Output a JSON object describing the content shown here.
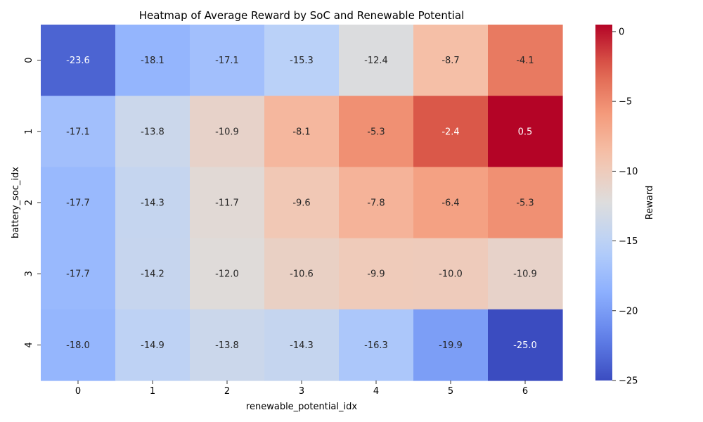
{
  "chart_data": {
    "type": "heatmap",
    "title": "Heatmap of Average Reward by SoC and Renewable Potential",
    "xlabel": "renewable_potential_idx",
    "ylabel": "battery_soc_idx",
    "x_categories": [
      "0",
      "1",
      "2",
      "3",
      "4",
      "5",
      "6"
    ],
    "y_categories": [
      "0",
      "1",
      "2",
      "3",
      "4"
    ],
    "values": [
      [
        -23.6,
        -18.1,
        -17.1,
        -15.3,
        -12.4,
        -8.7,
        -4.1
      ],
      [
        -17.1,
        -13.8,
        -10.9,
        -8.1,
        -5.3,
        -2.4,
        0.5
      ],
      [
        -17.7,
        -14.3,
        -11.7,
        -9.6,
        -7.8,
        -6.4,
        -5.3
      ],
      [
        -17.7,
        -14.2,
        -12.0,
        -10.6,
        -9.9,
        -10.0,
        -10.9
      ],
      [
        -18.0,
        -14.9,
        -13.8,
        -14.3,
        -16.3,
        -19.9,
        -25.0
      ]
    ],
    "value_format": "one decimal",
    "colormap": "coolwarm",
    "colorbar": {
      "label": "Reward",
      "vmin": -25.0,
      "vmax": 0.5,
      "ticks": [
        0,
        -5,
        -10,
        -15,
        -20,
        -25
      ],
      "tick_labels": [
        "0",
        "−5",
        "−10",
        "−15",
        "−20",
        "−25"
      ]
    }
  }
}
